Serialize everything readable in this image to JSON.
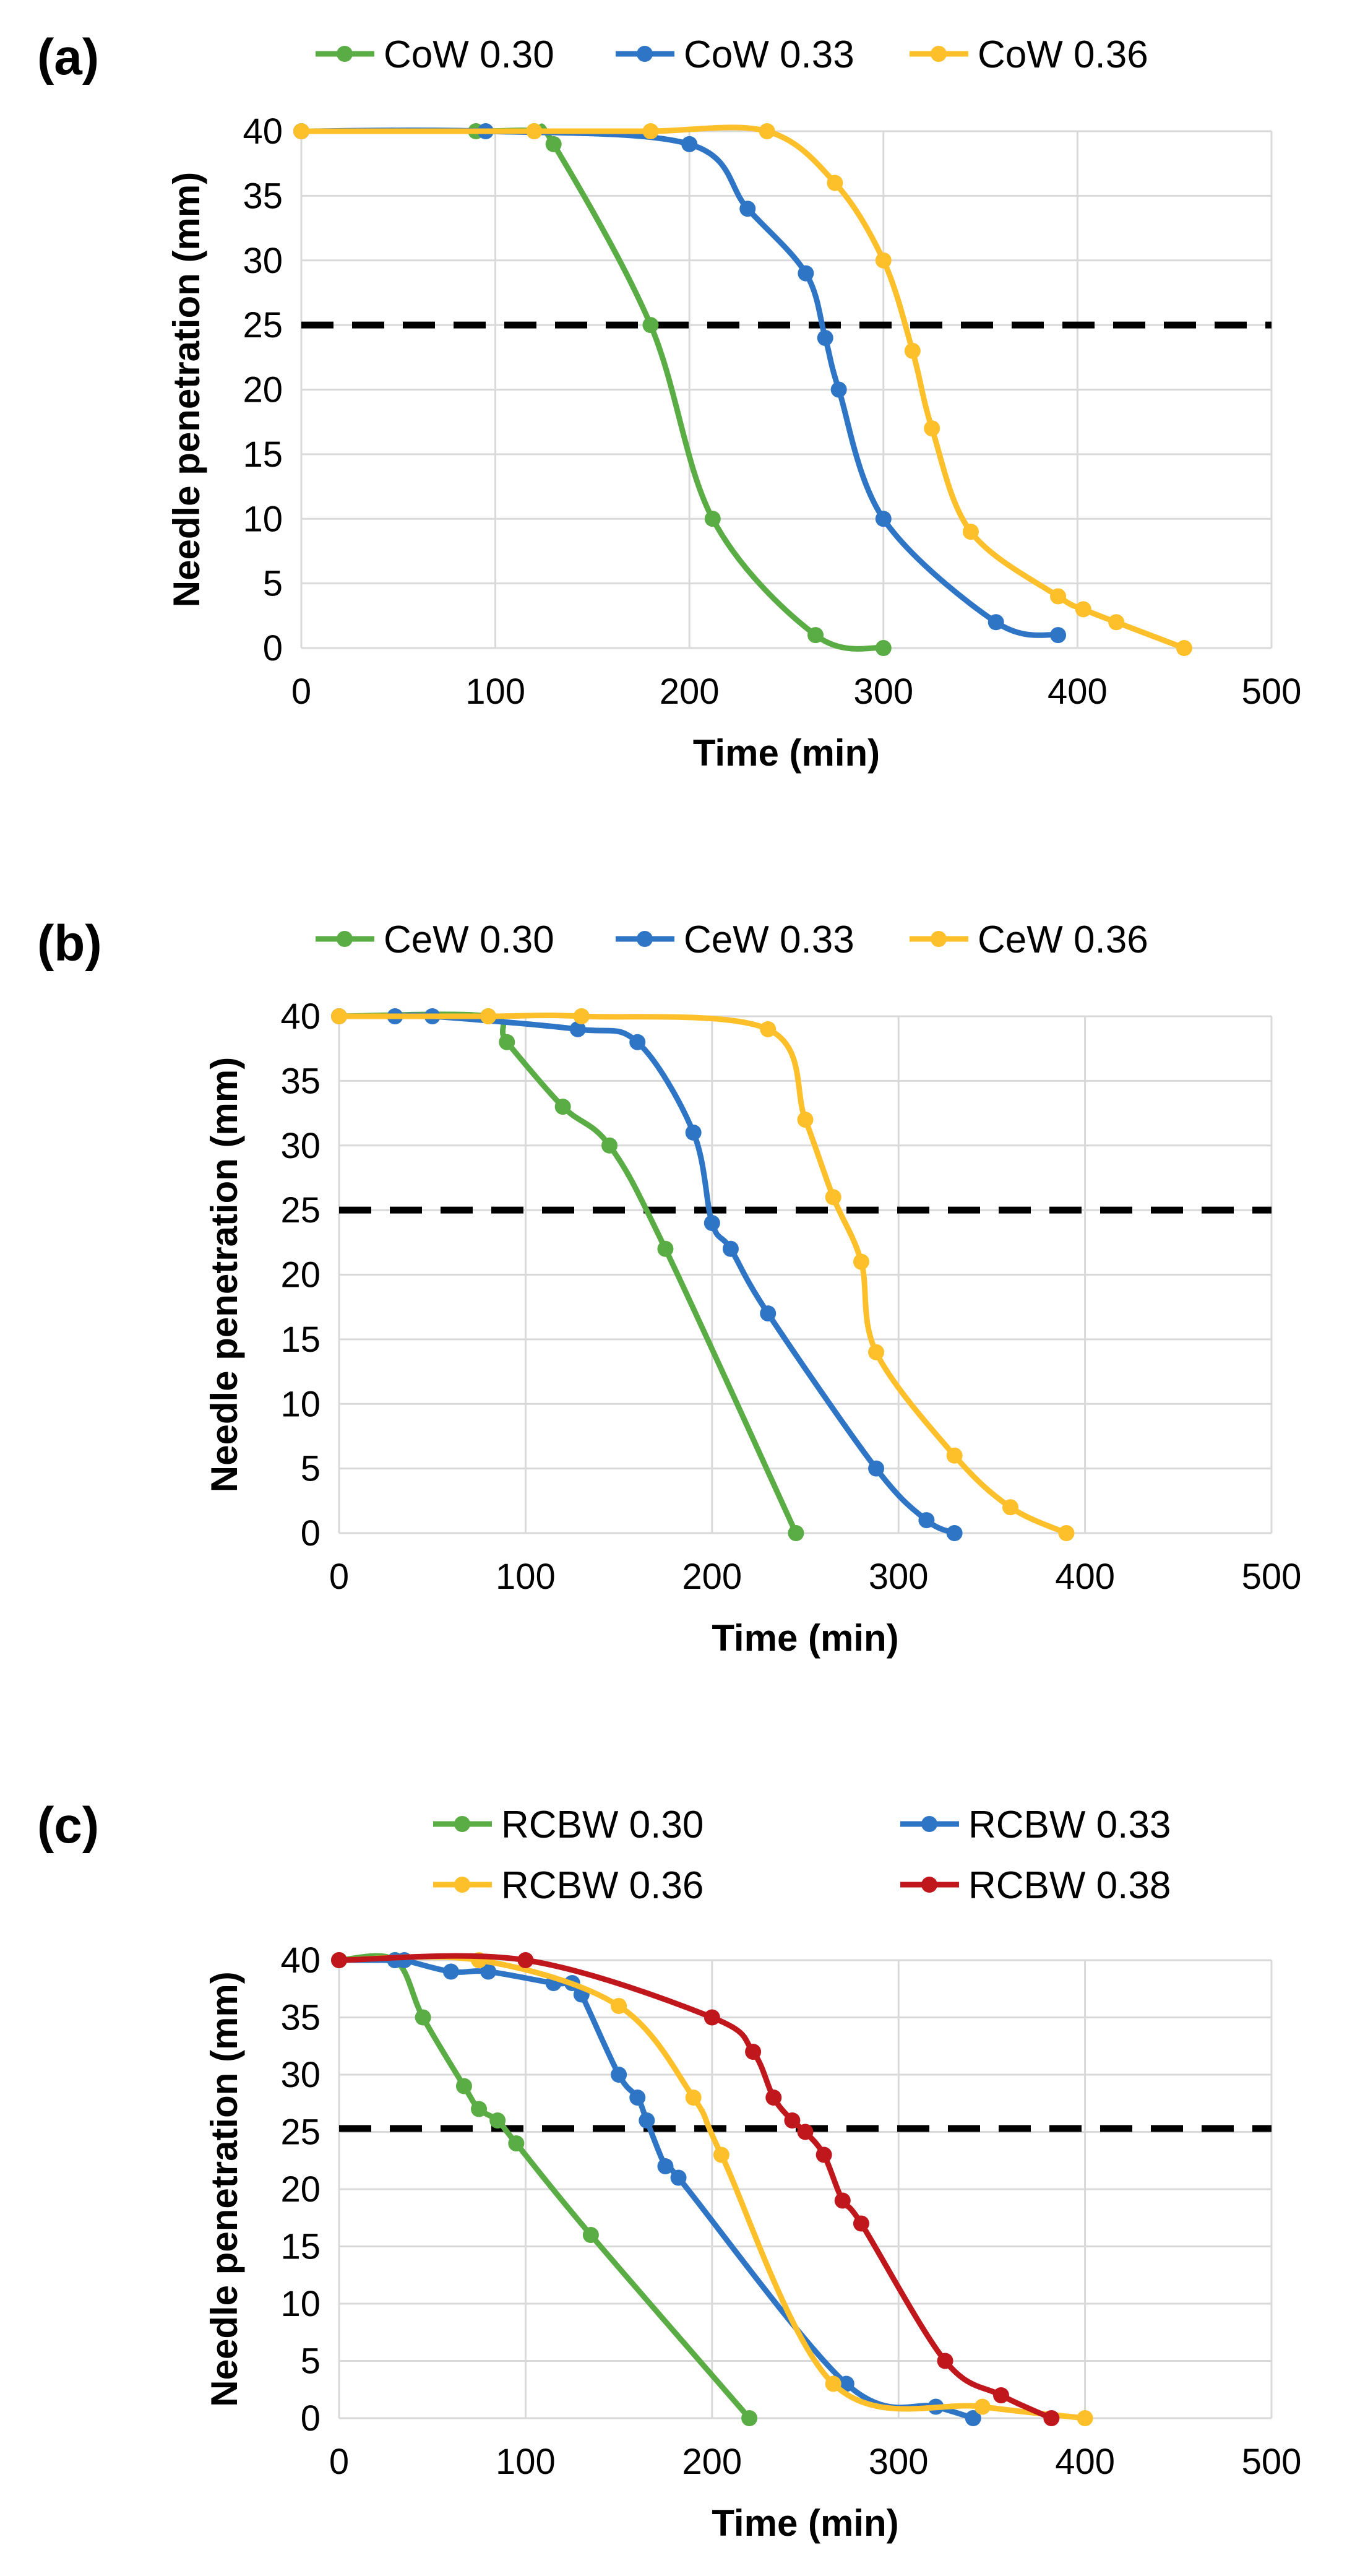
{
  "chart_data": [
    {
      "type": "line",
      "panel_label": "(a)",
      "xlabel": "Time (min)",
      "ylabel": "Needle penetration (mm)",
      "xlim": [
        0,
        500
      ],
      "ylim": [
        0,
        40
      ],
      "xticks": [
        0,
        100,
        200,
        300,
        400,
        500
      ],
      "yticks": [
        0,
        5,
        10,
        15,
        20,
        25,
        30,
        35,
        40
      ],
      "grid": true,
      "legend_position": "top",
      "threshold": 25,
      "series": [
        {
          "name": "CoW 0.30",
          "color": "#5aac44",
          "points": [
            [
              0,
              40
            ],
            [
              90,
              40
            ],
            [
              120,
              40
            ],
            [
              130,
              39
            ],
            [
              180,
              25
            ],
            [
              212,
              10
            ],
            [
              265,
              1
            ],
            [
              300,
              0
            ]
          ]
        },
        {
          "name": "CoW 0.33",
          "color": "#2e75c6",
          "points": [
            [
              0,
              40
            ],
            [
              95,
              40
            ],
            [
              200,
              39
            ],
            [
              230,
              34
            ],
            [
              260,
              29
            ],
            [
              270,
              24
            ],
            [
              277,
              20
            ],
            [
              300,
              10
            ],
            [
              358,
              2
            ],
            [
              390,
              1
            ]
          ]
        },
        {
          "name": "CoW 0.36",
          "color": "#fec02a",
          "points": [
            [
              0,
              40
            ],
            [
              120,
              40
            ],
            [
              180,
              40
            ],
            [
              240,
              40
            ],
            [
              275,
              36
            ],
            [
              300,
              30
            ],
            [
              315,
              23
            ],
            [
              325,
              17
            ],
            [
              345,
              9
            ],
            [
              390,
              4
            ],
            [
              403,
              3
            ],
            [
              420,
              2
            ],
            [
              455,
              0
            ]
          ]
        }
      ]
    },
    {
      "type": "line",
      "panel_label": "(b)",
      "xlabel": "Time (min)",
      "ylabel": "Needle penetration (mm)",
      "xlim": [
        0,
        500
      ],
      "ylim": [
        0,
        40
      ],
      "xticks": [
        0,
        100,
        200,
        300,
        400,
        500
      ],
      "yticks": [
        0,
        5,
        10,
        15,
        20,
        25,
        30,
        35,
        40
      ],
      "grid": true,
      "legend_position": "top",
      "threshold": 25,
      "series": [
        {
          "name": "CeW 0.30",
          "color": "#5aac44",
          "points": [
            [
              0,
              40
            ],
            [
              80,
              40
            ],
            [
              90,
              38
            ],
            [
              120,
              33
            ],
            [
              145,
              30
            ],
            [
              175,
              22
            ],
            [
              245,
              0
            ]
          ]
        },
        {
          "name": "CeW 0.33",
          "color": "#2e75c6",
          "points": [
            [
              0,
              40
            ],
            [
              30,
              40
            ],
            [
              50,
              40
            ],
            [
              128,
              39
            ],
            [
              160,
              38
            ],
            [
              190,
              31
            ],
            [
              200,
              24
            ],
            [
              210,
              22
            ],
            [
              230,
              17
            ],
            [
              288,
              5
            ],
            [
              315,
              1
            ],
            [
              330,
              0
            ]
          ]
        },
        {
          "name": "CeW 0.36",
          "color": "#fec02a",
          "points": [
            [
              0,
              40
            ],
            [
              80,
              40
            ],
            [
              130,
              40
            ],
            [
              230,
              39
            ],
            [
              250,
              32
            ],
            [
              265,
              26
            ],
            [
              280,
              21
            ],
            [
              288,
              14
            ],
            [
              330,
              6
            ],
            [
              360,
              2
            ],
            [
              390,
              0
            ]
          ]
        }
      ]
    },
    {
      "type": "line",
      "panel_label": "(c)",
      "xlabel": "Time (min)",
      "ylabel": "Needle penetration (mm)",
      "xlim": [
        0,
        500
      ],
      "ylim": [
        0,
        40
      ],
      "xticks": [
        0,
        100,
        200,
        300,
        400,
        500
      ],
      "yticks": [
        0,
        5,
        10,
        15,
        20,
        25,
        30,
        35,
        40
      ],
      "grid": true,
      "legend_position": "top",
      "threshold": 25.3,
      "series": [
        {
          "name": "RCBW 0.30",
          "color": "#5aac44",
          "points": [
            [
              0,
              40
            ],
            [
              30,
              40
            ],
            [
              45,
              35
            ],
            [
              67,
              29
            ],
            [
              75,
              27
            ],
            [
              85,
              26
            ],
            [
              95,
              24
            ],
            [
              135,
              16
            ],
            [
              220,
              0
            ]
          ]
        },
        {
          "name": "RCBW 0.33",
          "color": "#2e75c6",
          "points": [
            [
              0,
              40
            ],
            [
              30,
              40
            ],
            [
              35,
              40
            ],
            [
              60,
              39
            ],
            [
              80,
              39
            ],
            [
              115,
              38
            ],
            [
              125,
              38
            ],
            [
              130,
              37
            ],
            [
              150,
              30
            ],
            [
              160,
              28
            ],
            [
              165,
              26
            ],
            [
              175,
              22
            ],
            [
              182,
              21
            ],
            [
              272,
              3
            ],
            [
              320,
              1
            ],
            [
              340,
              0
            ]
          ]
        },
        {
          "name": "RCBW 0.36",
          "color": "#fec02a",
          "points": [
            [
              0,
              40
            ],
            [
              75,
              40
            ],
            [
              150,
              36
            ],
            [
              190,
              28
            ],
            [
              205,
              23
            ],
            [
              265,
              3
            ],
            [
              345,
              1
            ],
            [
              400,
              0
            ]
          ]
        },
        {
          "name": "RCBW 0.38",
          "color": "#c0171d",
          "points": [
            [
              0,
              40
            ],
            [
              100,
              40
            ],
            [
              200,
              35
            ],
            [
              222,
              32
            ],
            [
              233,
              28
            ],
            [
              243,
              26
            ],
            [
              250,
              25
            ],
            [
              260,
              23
            ],
            [
              270,
              19
            ],
            [
              280,
              17
            ],
            [
              325,
              5
            ],
            [
              355,
              2
            ],
            [
              382,
              0
            ]
          ]
        }
      ]
    }
  ]
}
